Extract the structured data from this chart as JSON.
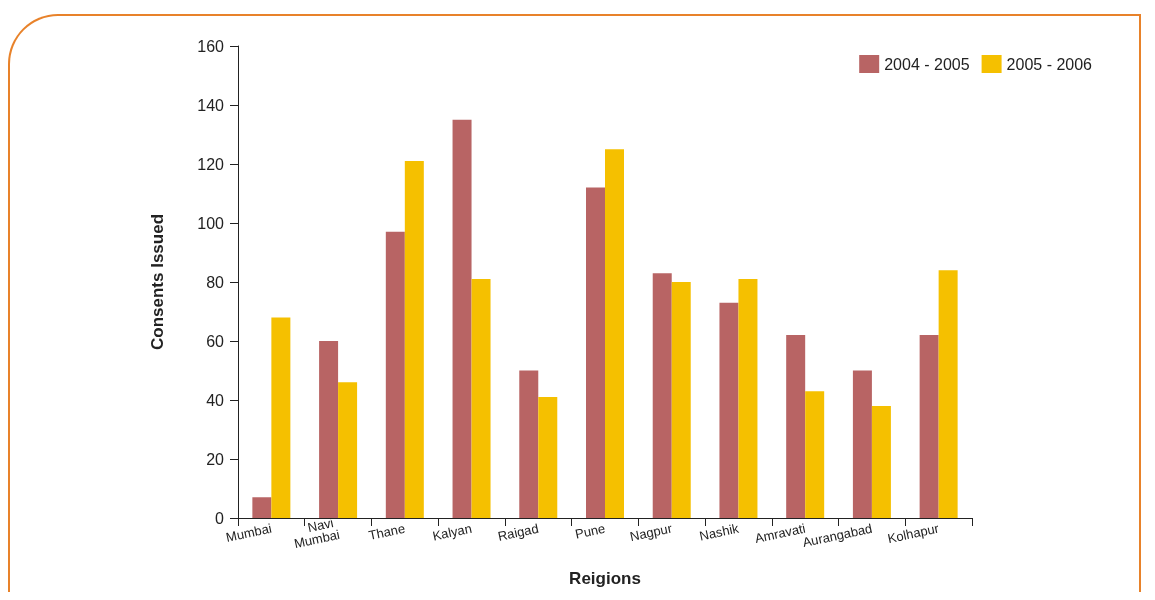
{
  "chart_data": {
    "type": "bar",
    "xlabel": "Reigions",
    "ylabel": "Consents Issued",
    "categories": [
      "Mumbai",
      "Navi Mumbai",
      "Thane",
      "Kalyan",
      "Raigad",
      "Pune",
      "Nagpur",
      "Nashik",
      "Amravati",
      "Aurangabad",
      "Kolhapur"
    ],
    "series": [
      {
        "name": "2004 - 2005",
        "color": "#b86464",
        "values": [
          7,
          60,
          97,
          135,
          50,
          112,
          83,
          73,
          62,
          50,
          62
        ]
      },
      {
        "name": "2005 - 2006",
        "color": "#f5c000",
        "values": [
          68,
          46,
          121,
          81,
          41,
          125,
          80,
          81,
          43,
          38,
          84
        ]
      }
    ],
    "ylim": [
      0,
      160
    ],
    "yticks": [
      0,
      20,
      40,
      60,
      80,
      100,
      120,
      140,
      160
    ],
    "grid": false,
    "legend": "top right"
  }
}
